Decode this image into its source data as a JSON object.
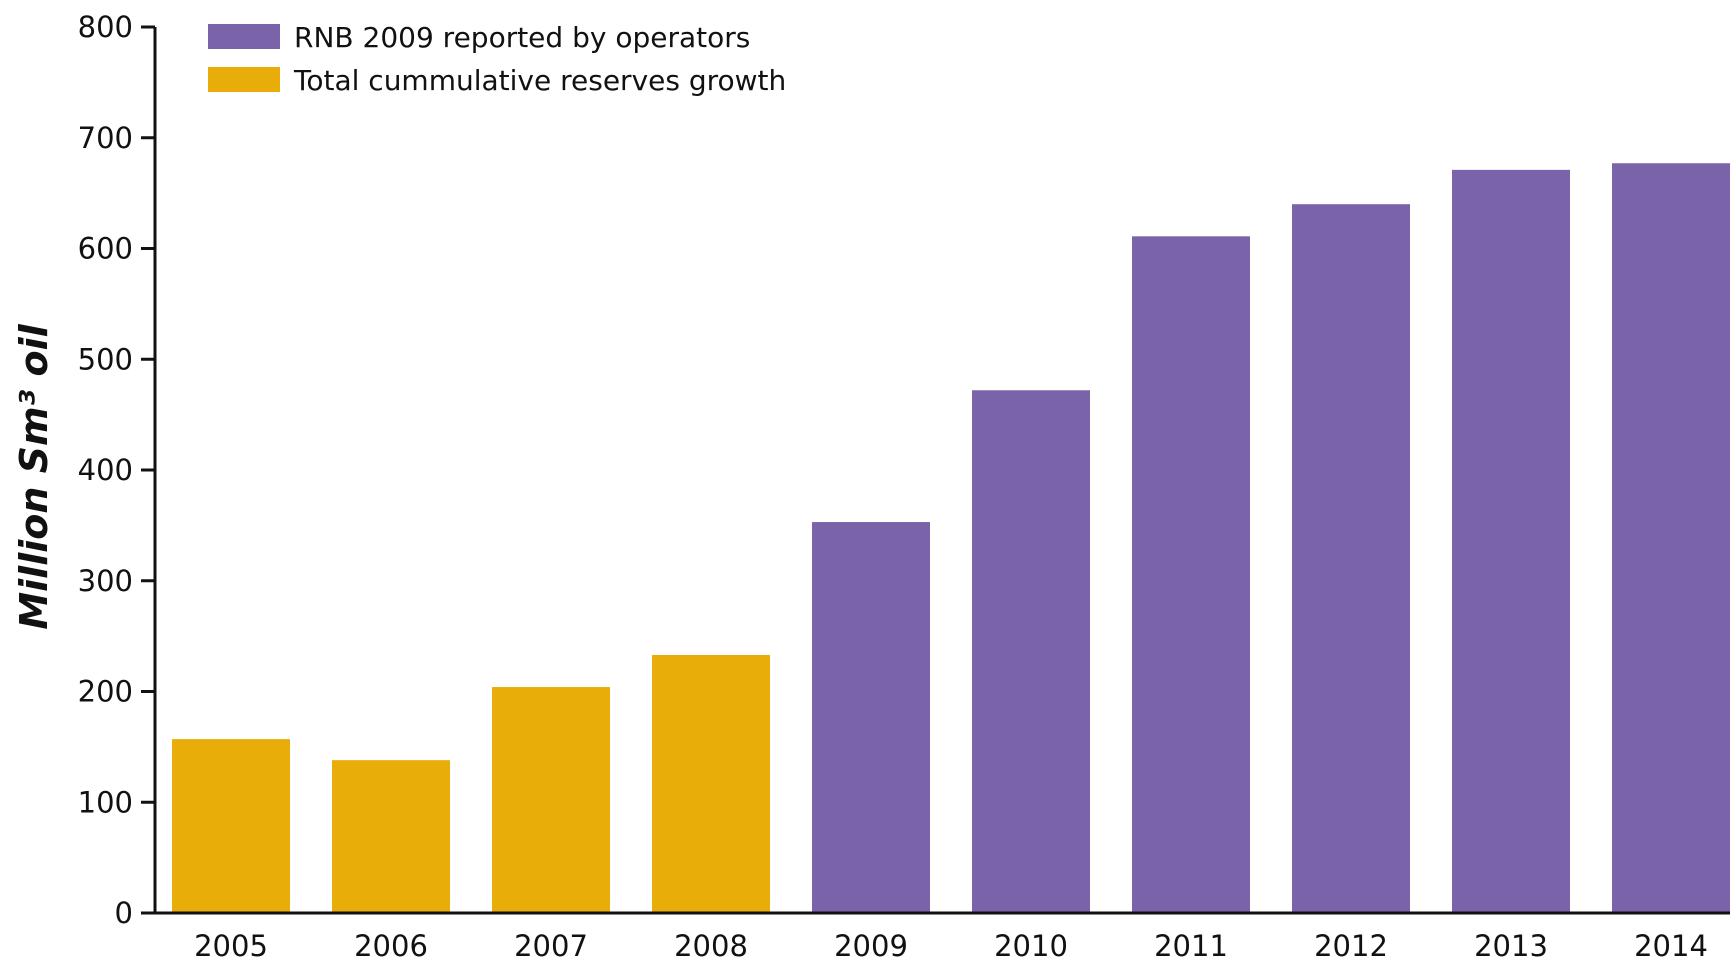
{
  "chart_data": {
    "type": "bar",
    "categories": [
      "2005",
      "2006",
      "2007",
      "2008",
      "2009",
      "2010",
      "2011",
      "2012",
      "2013",
      "2014"
    ],
    "series": [
      {
        "name": "Total cummulative reserves growth",
        "color": "#E8AD09",
        "values": [
          157,
          138,
          204,
          233,
          null,
          null,
          null,
          null,
          null,
          null
        ]
      },
      {
        "name": "RNB 2009 reported by operators",
        "color": "#7B63A9",
        "values": [
          null,
          null,
          null,
          null,
          353,
          472,
          611,
          640,
          671,
          677
        ]
      }
    ],
    "legend_order": [
      "RNB 2009 reported by operators",
      "Total cummulative reserves growth"
    ],
    "legend_position": "top-left",
    "ylabel": "Million Sm³ oil",
    "xlabel": "",
    "ylim": [
      0,
      800
    ],
    "yticks": [
      0,
      100,
      200,
      300,
      400,
      500,
      600,
      700,
      800
    ],
    "grid": false,
    "axis_color": "#111111"
  }
}
